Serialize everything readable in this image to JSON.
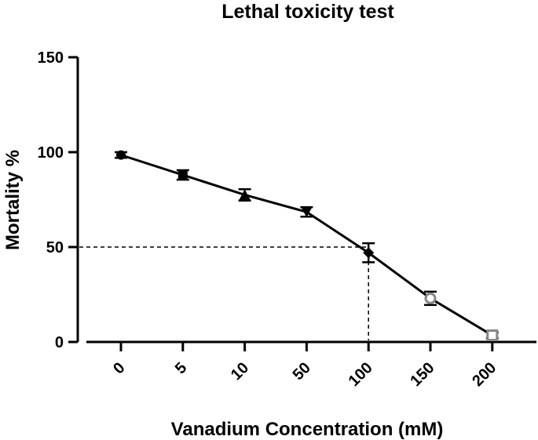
{
  "chart_data": {
    "type": "line",
    "title": "Lethal toxicity test",
    "xlabel": "Vanadium Concentration (mM)",
    "ylabel": "Mortality %",
    "categories": [
      "0",
      "5",
      "10",
      "50",
      "100",
      "150",
      "200"
    ],
    "series": [
      {
        "values": [
          98.5,
          88,
          77.5,
          68.5,
          47,
          23,
          3.5
        ],
        "errors": [
          1.5,
          2.5,
          3,
          2.5,
          5,
          3.5,
          1.5
        ],
        "markers": [
          "circle",
          "square",
          "triangle-up",
          "triangle-down",
          "diamond",
          "circle-open",
          "square-open"
        ]
      }
    ],
    "ylim": [
      0,
      150
    ],
    "yticks": [
      0,
      50,
      100,
      150
    ],
    "reference_lines": {
      "y": 50,
      "x_category": "100",
      "style": "dashed"
    },
    "grid": false,
    "legend": "none"
  }
}
